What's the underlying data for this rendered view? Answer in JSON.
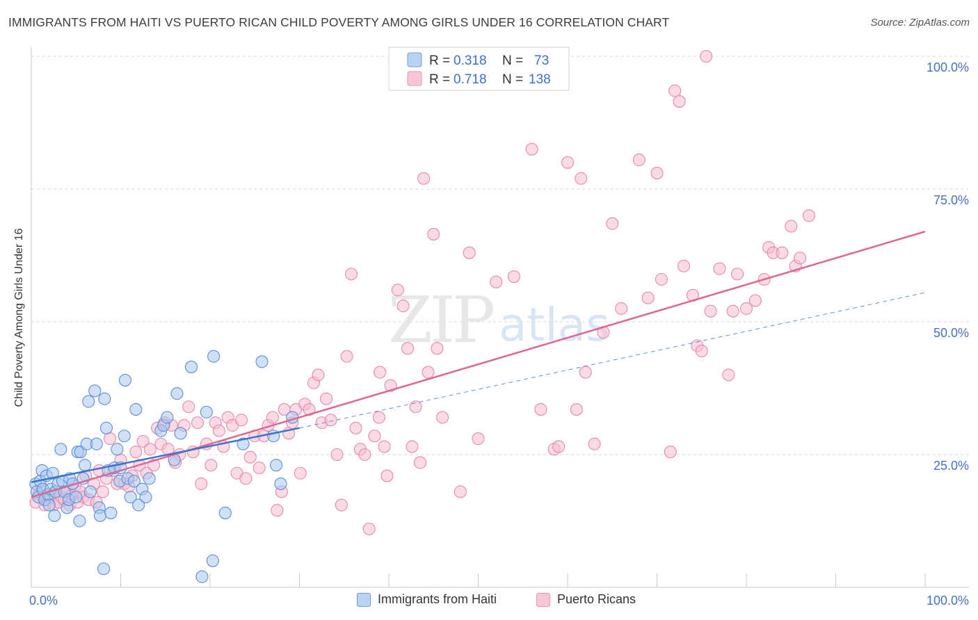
{
  "title": "IMMIGRANTS FROM HAITI VS PUERTO RICAN CHILD POVERTY AMONG GIRLS UNDER 16 CORRELATION CHART",
  "source": "Source: ZipAtlas.com",
  "watermark": {
    "zip": "ZIP",
    "atlas": "atlas"
  },
  "colors": {
    "haiti_fill": "#a9c8f0",
    "haiti_stroke": "#5b8fd6",
    "haiti_line": "#3a74cc",
    "pr_fill": "#f6bcd0",
    "pr_stroke": "#e58aa8",
    "pr_line": "#e06590",
    "tick": "#4472c4",
    "grid": "#d9d9d9"
  },
  "legend": {
    "r_label": "R =",
    "n_label": "N =",
    "haiti": {
      "r": "0.318",
      "n": "73"
    },
    "pr": {
      "r": "0.718",
      "n": "138"
    }
  },
  "bottom_legend": {
    "haiti": "Immigrants from Haiti",
    "pr": "Puerto Ricans"
  },
  "chart_data": {
    "type": "scatter",
    "ylabel": "Child Poverty Among Girls Under 16",
    "xlim": [
      0,
      100
    ],
    "ylim": [
      0,
      100
    ],
    "x_tick_labels": [
      {
        "value": 0,
        "label": "0.0%"
      },
      {
        "value": 100,
        "label": "100.0%"
      }
    ],
    "y_tick_labels": [
      {
        "value": 25,
        "label": "25.0%"
      },
      {
        "value": 50,
        "label": "50.0%"
      },
      {
        "value": 75,
        "label": "75.0%"
      },
      {
        "value": 100,
        "label": "100.0%"
      }
    ],
    "grid": "horizontal dashed",
    "legend_placement": "top-center",
    "series": [
      {
        "name": "Immigrants from Haiti",
        "trend": {
          "x": [
            0,
            30
          ],
          "y": [
            19.8,
            30.0
          ],
          "extended_dashed_to": [
            100,
            55.5
          ]
        },
        "points": [
          [
            0.5,
            19.5
          ],
          [
            0.6,
            18
          ],
          [
            0.8,
            17
          ],
          [
            1,
            20
          ],
          [
            1.2,
            22
          ],
          [
            1.3,
            18.5
          ],
          [
            1.5,
            16.5
          ],
          [
            1.7,
            21
          ],
          [
            1.9,
            17.5
          ],
          [
            2,
            15.5
          ],
          [
            2.2,
            18.5
          ],
          [
            2.4,
            21.5
          ],
          [
            2.6,
            13.5
          ],
          [
            2.7,
            18
          ],
          [
            3,
            19.5
          ],
          [
            3.3,
            26
          ],
          [
            3.5,
            20
          ],
          [
            3.7,
            18
          ],
          [
            4,
            15
          ],
          [
            4.2,
            16.5
          ],
          [
            4.3,
            20.5
          ],
          [
            4.6,
            19.5
          ],
          [
            5,
            17
          ],
          [
            5.2,
            25.5
          ],
          [
            5.4,
            12.5
          ],
          [
            5.5,
            25.5
          ],
          [
            5.8,
            20.5
          ],
          [
            6,
            23
          ],
          [
            6.2,
            27
          ],
          [
            6.4,
            35
          ],
          [
            6.6,
            18
          ],
          [
            7.1,
            37
          ],
          [
            7.3,
            27
          ],
          [
            7.6,
            15
          ],
          [
            7.7,
            13.5
          ],
          [
            8.1,
            3.5
          ],
          [
            8.2,
            35.5
          ],
          [
            8.4,
            30
          ],
          [
            8.6,
            22
          ],
          [
            8.9,
            14
          ],
          [
            9.3,
            22.5
          ],
          [
            9.6,
            26
          ],
          [
            9.9,
            20
          ],
          [
            10,
            22.5
          ],
          [
            10.4,
            28.5
          ],
          [
            10.5,
            39
          ],
          [
            10.8,
            20.5
          ],
          [
            11.1,
            17
          ],
          [
            11.5,
            20
          ],
          [
            11.7,
            33.5
          ],
          [
            12,
            15.5
          ],
          [
            12.4,
            18.5
          ],
          [
            12.8,
            17
          ],
          [
            13.2,
            20.5
          ],
          [
            14.5,
            29.5
          ],
          [
            14.8,
            30.5
          ],
          [
            15.2,
            32
          ],
          [
            16,
            24
          ],
          [
            16.3,
            36.5
          ],
          [
            16.7,
            29
          ],
          [
            17.9,
            41.5
          ],
          [
            19.1,
            2
          ],
          [
            19.6,
            33
          ],
          [
            20.3,
            5
          ],
          [
            20.4,
            43.5
          ],
          [
            21.7,
            14
          ],
          [
            23.7,
            27
          ],
          [
            25.8,
            42.5
          ],
          [
            27.1,
            28.5
          ],
          [
            27.4,
            23
          ],
          [
            27.9,
            19.5
          ],
          [
            29.2,
            32
          ]
        ]
      },
      {
        "name": "Puerto Ricans",
        "trend": {
          "x": [
            0,
            100
          ],
          "y": [
            17.0,
            67.0
          ]
        },
        "points": [
          [
            0.5,
            16
          ],
          [
            0.8,
            17.5
          ],
          [
            1.2,
            18.5
          ],
          [
            1.5,
            15.5
          ],
          [
            1.8,
            16.5
          ],
          [
            2.1,
            17
          ],
          [
            2.5,
            15.5
          ],
          [
            2.8,
            18
          ],
          [
            3.1,
            16
          ],
          [
            3.4,
            17
          ],
          [
            3.7,
            16.5
          ],
          [
            4,
            18
          ],
          [
            4.3,
            15.5
          ],
          [
            4.6,
            17.5
          ],
          [
            4.9,
            19
          ],
          [
            5.2,
            16
          ],
          [
            5.5,
            18
          ],
          [
            5.8,
            17
          ],
          [
            6.1,
            21
          ],
          [
            6.4,
            16.5
          ],
          [
            7,
            19.5
          ],
          [
            7.3,
            16
          ],
          [
            7.6,
            22
          ],
          [
            8,
            18
          ],
          [
            8.4,
            20.5
          ],
          [
            8.8,
            28
          ],
          [
            9.2,
            22
          ],
          [
            9.6,
            19.5
          ],
          [
            10,
            24
          ],
          [
            10.4,
            19.5
          ],
          [
            10.9,
            19
          ],
          [
            11.3,
            21
          ],
          [
            11.7,
            25.5
          ],
          [
            12.1,
            23
          ],
          [
            12.5,
            27.5
          ],
          [
            12.9,
            21.5
          ],
          [
            13.3,
            26
          ],
          [
            13.7,
            23
          ],
          [
            14.1,
            30
          ],
          [
            14.5,
            27
          ],
          [
            14.9,
            31
          ],
          [
            15.3,
            26
          ],
          [
            15.7,
            30.5
          ],
          [
            16.1,
            23.5
          ],
          [
            16.6,
            25
          ],
          [
            17.1,
            30.5
          ],
          [
            17.6,
            34
          ],
          [
            18.1,
            25.5
          ],
          [
            18.6,
            31
          ],
          [
            19,
            19.5
          ],
          [
            19.6,
            27
          ],
          [
            20.1,
            23
          ],
          [
            20.6,
            31
          ],
          [
            21,
            29.5
          ],
          [
            21.5,
            26.5
          ],
          [
            22,
            32
          ],
          [
            22.5,
            30.5
          ],
          [
            23,
            21.5
          ],
          [
            23.5,
            31.5
          ],
          [
            24,
            20.5
          ],
          [
            24.5,
            24.5
          ],
          [
            25,
            28.5
          ],
          [
            25.5,
            22.5
          ],
          [
            26,
            28.5
          ],
          [
            26.5,
            30.5
          ],
          [
            27,
            32
          ],
          [
            27.5,
            14.5
          ],
          [
            28,
            18
          ],
          [
            28.3,
            33.5
          ],
          [
            28.8,
            29
          ],
          [
            29.2,
            31
          ],
          [
            29.6,
            33.5
          ],
          [
            30.1,
            21.5
          ],
          [
            30.6,
            34.5
          ],
          [
            31.1,
            33.5
          ],
          [
            31.6,
            38.5
          ],
          [
            32.1,
            40
          ],
          [
            32.5,
            31
          ],
          [
            33,
            35.5
          ],
          [
            33.5,
            31.5
          ],
          [
            34.2,
            25
          ],
          [
            34.7,
            15.5
          ],
          [
            35.3,
            43.5
          ],
          [
            35.8,
            59
          ],
          [
            36.3,
            30
          ],
          [
            36.8,
            26
          ],
          [
            37.3,
            25
          ],
          [
            37.8,
            11
          ],
          [
            38.4,
            28.5
          ],
          [
            38.9,
            32
          ],
          [
            39,
            40.5
          ],
          [
            39.5,
            26.5
          ],
          [
            39.8,
            21
          ],
          [
            40.2,
            38
          ],
          [
            41,
            56
          ],
          [
            41.6,
            53
          ],
          [
            42.1,
            45
          ],
          [
            42.6,
            26.5
          ],
          [
            43,
            34
          ],
          [
            43.5,
            23.5
          ],
          [
            43.9,
            77
          ],
          [
            44.4,
            40.5
          ],
          [
            45,
            66.5
          ],
          [
            45.4,
            45
          ],
          [
            46,
            32
          ],
          [
            48,
            18
          ],
          [
            49,
            63
          ],
          [
            50,
            28
          ],
          [
            52,
            57.5
          ],
          [
            54,
            58.5
          ],
          [
            55,
            100
          ],
          [
            55,
            100.5
          ],
          [
            56,
            82.5
          ],
          [
            57,
            33.5
          ],
          [
            57.3,
            100
          ],
          [
            58.5,
            26
          ],
          [
            58.7,
            100
          ],
          [
            59,
            26.5
          ],
          [
            60,
            80
          ],
          [
            61,
            33.5
          ],
          [
            61.5,
            77
          ],
          [
            62,
            40.5
          ],
          [
            63,
            27
          ],
          [
            64,
            48
          ],
          [
            65,
            68.5
          ],
          [
            66,
            52.5
          ],
          [
            68,
            80.5
          ],
          [
            69,
            54.5
          ],
          [
            70,
            78
          ],
          [
            70.5,
            58
          ],
          [
            71.5,
            25.5
          ],
          [
            72,
            93.5
          ],
          [
            72.5,
            91.5
          ],
          [
            73,
            60.5
          ],
          [
            74,
            55
          ],
          [
            74.5,
            45.5
          ],
          [
            75,
            44.5
          ],
          [
            75.5,
            100
          ],
          [
            76,
            52
          ],
          [
            77,
            60
          ],
          [
            78,
            40
          ],
          [
            78.5,
            52
          ],
          [
            79,
            59
          ],
          [
            80,
            52.5
          ],
          [
            81,
            54
          ],
          [
            82,
            58
          ],
          [
            82.5,
            64
          ],
          [
            83,
            63
          ],
          [
            84,
            63
          ],
          [
            85,
            68
          ],
          [
            85.5,
            60.5
          ],
          [
            86,
            62
          ],
          [
            87,
            70
          ]
        ]
      }
    ]
  }
}
